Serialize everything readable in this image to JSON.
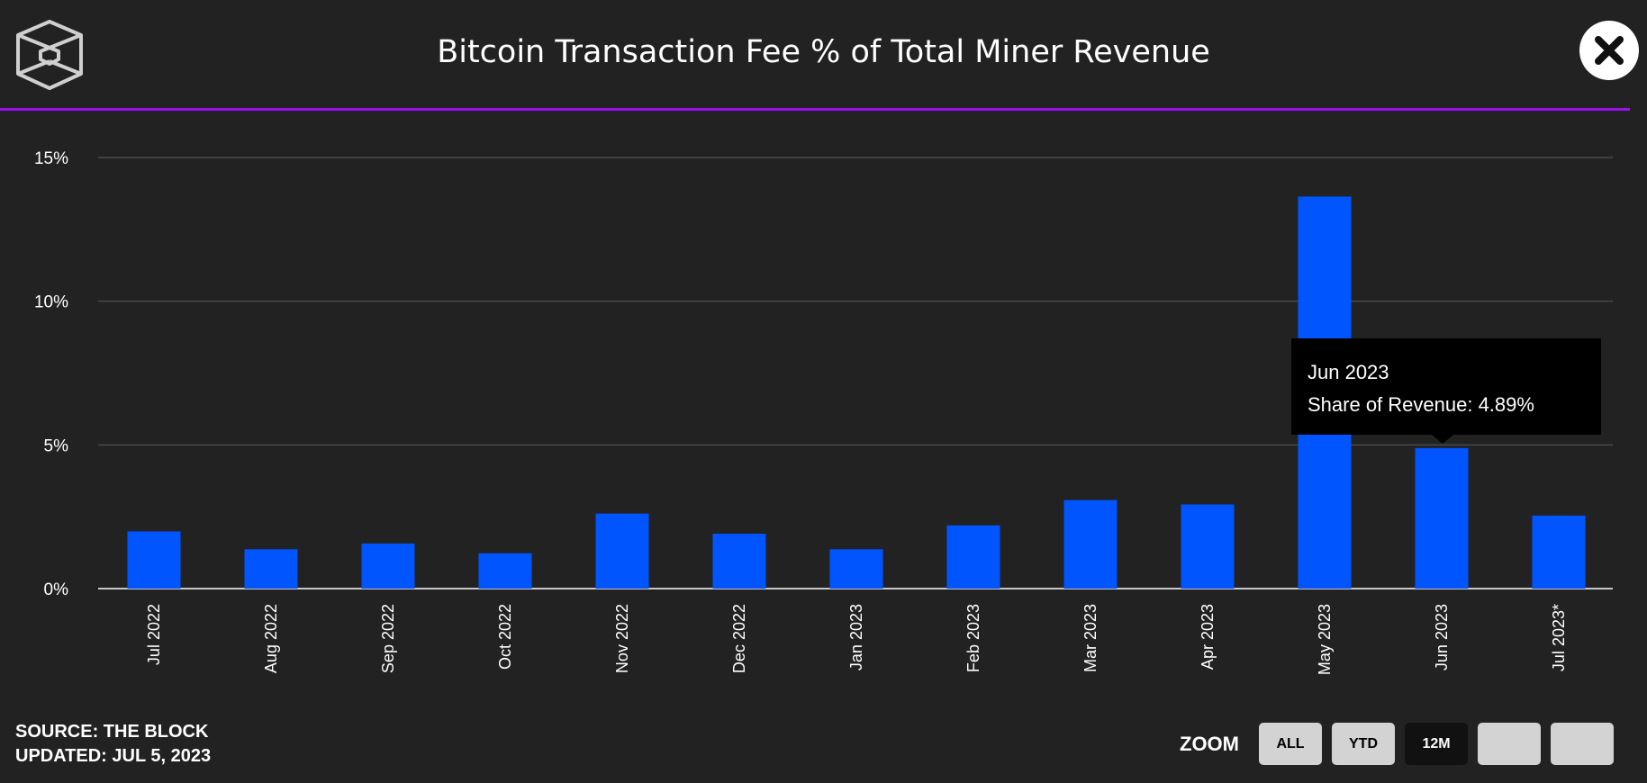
{
  "header": {
    "title": "Bitcoin Transaction Fee % of Total Miner Revenue",
    "logo_icon": "cube-logo-icon",
    "close_icon": "close-icon"
  },
  "chart_data": {
    "type": "bar",
    "title": "Bitcoin Transaction Fee % of Total Miner Revenue",
    "xlabel": "",
    "ylabel": "",
    "ylim": [
      0,
      15
    ],
    "yticks": [
      0,
      5,
      10,
      15
    ],
    "ytick_labels": [
      "0%",
      "5%",
      "10%",
      "15%"
    ],
    "grid": true,
    "categories": [
      "Jul 2022",
      "Aug 2022",
      "Sep 2022",
      "Oct 2022",
      "Nov 2022",
      "Dec 2022",
      "Jan 2023",
      "Feb 2023",
      "Mar 2023",
      "Apr 2023",
      "May 2023",
      "Jun 2023",
      "Jul 2023*"
    ],
    "series": [
      {
        "name": "Share of Revenue",
        "color": "#0055ff",
        "values": [
          1.99,
          1.37,
          1.57,
          1.23,
          2.61,
          1.91,
          1.37,
          2.2,
          3.08,
          2.93,
          13.64,
          4.89,
          2.54
        ]
      }
    ]
  },
  "tooltip": {
    "title": "Jun 2023",
    "line": "Share of Revenue: 4.89%"
  },
  "footer": {
    "source": "SOURCE: THE BLOCK",
    "updated": "UPDATED: JUL 5, 2023"
  },
  "zoom": {
    "label": "ZOOM",
    "buttons": [
      "ALL",
      "YTD",
      "12M",
      "",
      ""
    ],
    "active": "12M"
  },
  "colors": {
    "background": "#222222",
    "accent": "#9b10f0",
    "bar": "#0055ff"
  }
}
